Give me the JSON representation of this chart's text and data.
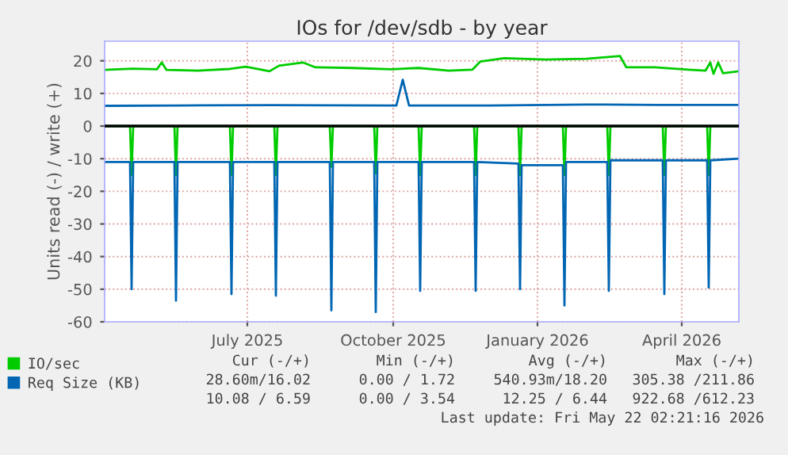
{
  "chart_data": {
    "type": "line",
    "title": "IOs for /dev/sdb - by year",
    "ylabel": "Units read (-) / write (+)",
    "xlim": [
      "2025-04-17",
      "2026-05-22"
    ],
    "xticks": [
      {
        "value": "2025-07-16",
        "label": "July 2025"
      },
      {
        "value": "2025-10-16",
        "label": "October 2025"
      },
      {
        "value": "2026-01-15",
        "label": "January 2026"
      },
      {
        "value": "2026-04-16",
        "label": "April 2026"
      }
    ],
    "ylim": [
      -60,
      26
    ],
    "yticks": [
      -60,
      -50,
      -40,
      -30,
      -20,
      -10,
      0,
      10,
      20
    ],
    "grid": true,
    "legend": "bottom",
    "ref_lines": [
      {
        "axis": "y",
        "value": 0,
        "color": "#000000"
      }
    ],
    "series": [
      {
        "name": "IO/sec",
        "color": "#00cc00",
        "x": [
          "2025-04-17",
          "2025-05-05",
          "2025-05-20",
          "2025-05-23",
          "2025-05-26",
          "2025-06-15",
          "2025-07-05",
          "2025-07-15",
          "2025-07-30",
          "2025-08-05",
          "2025-08-20",
          "2025-08-28",
          "2025-09-20",
          "2025-10-15",
          "2025-11-01",
          "2025-11-20",
          "2025-12-05",
          "2025-12-10",
          "2025-12-25",
          "2026-01-20",
          "2026-02-15",
          "2026-03-08",
          "2026-03-12",
          "2026-03-30",
          "2026-04-20",
          "2026-05-01",
          "2026-05-04",
          "2026-05-06",
          "2026-05-09",
          "2026-05-12",
          "2026-05-22"
        ],
        "values": [
          17.2,
          17.6,
          17.4,
          19.5,
          17.2,
          17.0,
          17.5,
          18.2,
          16.8,
          18.5,
          19.5,
          18.0,
          17.8,
          17.4,
          17.8,
          17.0,
          17.3,
          19.8,
          20.8,
          20.4,
          20.6,
          21.5,
          18.0,
          18.0,
          17.3,
          17.0,
          19.5,
          16.0,
          19.5,
          16.2,
          16.8
        ]
      },
      {
        "color": "#00cc00",
        "x": [
          "2025-04-17",
          "2025-05-03",
          "2025-05-04",
          "2025-05-05",
          "2025-05-31",
          "2025-06-01",
          "2025-06-02",
          "2025-07-05",
          "2025-07-06",
          "2025-07-07",
          "2025-08-02",
          "2025-08-03",
          "2025-08-04",
          "2025-09-06",
          "2025-09-07",
          "2025-09-08",
          "2025-10-04",
          "2025-10-05",
          "2025-10-06",
          "2025-11-01",
          "2025-11-02",
          "2025-11-03",
          "2025-12-06",
          "2025-12-07",
          "2025-12-08",
          "2026-01-03",
          "2026-01-04",
          "2026-01-05",
          "2026-01-31",
          "2026-02-01",
          "2026-02-02",
          "2026-02-28",
          "2026-03-01",
          "2026-03-02",
          "2026-04-04",
          "2026-04-05",
          "2026-04-06",
          "2026-05-02",
          "2026-05-03",
          "2026-05-04",
          "2026-05-22"
        ],
        "values": [
          0,
          0,
          -15,
          0,
          0,
          -15,
          0,
          0,
          -15,
          0,
          0,
          -15,
          0,
          0,
          -12.5,
          0,
          0,
          -14.5,
          0,
          0,
          -15,
          0,
          0,
          -15,
          0,
          0,
          -15,
          0,
          0,
          -15,
          0,
          0,
          -15,
          0,
          0,
          -15,
          0,
          0,
          -15,
          0,
          0
        ]
      },
      {
        "name": "Req Size (KB)",
        "color": "#0066b3",
        "x": [
          "2025-04-17",
          "2025-06-01",
          "2025-08-01",
          "2025-10-18",
          "2025-10-22",
          "2025-10-26",
          "2025-12-15",
          "2026-02-15",
          "2026-04-01",
          "2026-05-22"
        ],
        "values": [
          6.2,
          6.3,
          6.4,
          6.3,
          14.2,
          6.3,
          6.3,
          6.6,
          6.5,
          6.5
        ]
      },
      {
        "color": "#0066b3",
        "x": [
          "2025-04-17",
          "2025-05-03",
          "2025-05-04",
          "2025-05-05",
          "2025-05-31",
          "2025-06-01",
          "2025-06-02",
          "2025-07-05",
          "2025-07-06",
          "2025-07-07",
          "2025-08-02",
          "2025-08-03",
          "2025-08-04",
          "2025-09-06",
          "2025-09-07",
          "2025-09-08",
          "2025-10-04",
          "2025-10-05",
          "2025-10-06",
          "2025-11-01",
          "2025-11-02",
          "2025-11-03",
          "2025-12-06",
          "2025-12-07",
          "2025-12-08",
          "2026-01-03",
          "2026-01-04",
          "2026-01-05",
          "2026-01-31",
          "2026-02-01",
          "2026-02-02",
          "2026-02-28",
          "2026-03-01",
          "2026-03-02",
          "2026-04-04",
          "2026-04-05",
          "2026-04-06",
          "2026-05-02",
          "2026-05-03",
          "2026-05-04",
          "2026-05-22"
        ],
        "values": [
          -11,
          -11,
          -50,
          -11,
          -11,
          -53.5,
          -11,
          -11,
          -51.5,
          -11,
          -11,
          -52,
          -11,
          -11,
          -56.5,
          -11,
          -11,
          -57,
          -11,
          -11,
          -50.5,
          -11,
          -11,
          -50.5,
          -11,
          -11.5,
          -50,
          -12,
          -12,
          -55,
          -11,
          -11,
          -50.5,
          -10.5,
          -10.5,
          -51.5,
          -10.5,
          -10.5,
          -49.5,
          -10.5,
          -10
        ]
      }
    ],
    "annotations": [
      "Cur (-/+)",
      "Min (-/+)",
      "Avg (-/+)",
      "Max (-/+)",
      "28.60m/16.02",
      "0.00 / 1.72",
      "540.93m/18.20",
      "305.38 /211.86",
      "10.08 / 6.59",
      "0.00 / 3.54",
      "12.25 / 6.44",
      "922.68 /612.23",
      "Last update: Fri May 22 02:21:16 2026"
    ]
  }
}
